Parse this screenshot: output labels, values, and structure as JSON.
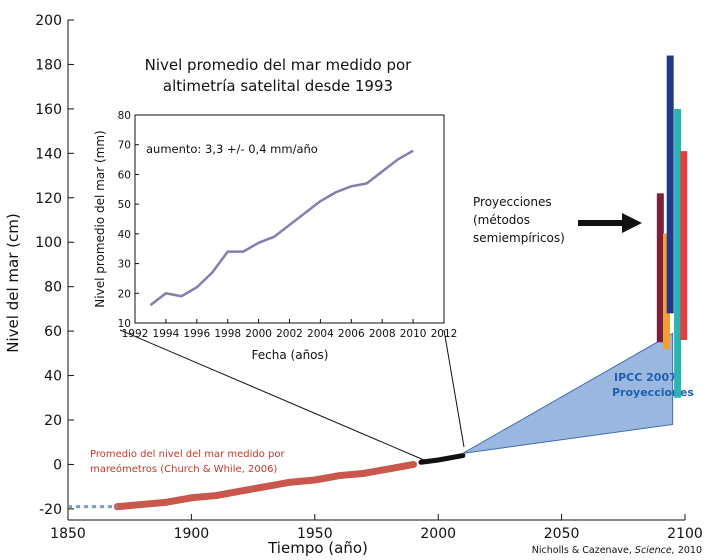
{
  "chart_data": [
    {
      "type": "line",
      "xlabel": "Tiempo (año)",
      "ylabel": "Nivel del mar (cm)",
      "xlim": [
        1850,
        2100
      ],
      "ylim": [
        -25,
        200
      ],
      "x_ticks": [
        1850,
        1900,
        1950,
        2000,
        2050,
        2100
      ],
      "y_ticks": [
        -20,
        0,
        20,
        40,
        60,
        80,
        100,
        120,
        140,
        160,
        180,
        200
      ],
      "series": [
        {
          "name": "Promedio del nivel del mar medido por mareómetros (Church & White, 2006)",
          "color": "#c0392b",
          "x": [
            1870,
            1880,
            1890,
            1900,
            1910,
            1920,
            1930,
            1940,
            1950,
            1960,
            1970,
            1980,
            1990
          ],
          "y": [
            -19,
            -18,
            -17,
            -15,
            -14,
            -12,
            -10,
            -8,
            -7,
            -5,
            -4,
            -2,
            0
          ]
        },
        {
          "color": "#7f9cc4",
          "style": "dotted",
          "x": [
            1850,
            1870
          ],
          "y": [
            -19,
            -19
          ]
        },
        {
          "color": "#111111",
          "x": [
            1993,
            2000,
            2010
          ],
          "y": [
            1,
            2,
            4
          ]
        }
      ],
      "ipcc_projection": {
        "label_line1": "IPCC 2007",
        "label_line2": "Proyecciones",
        "start": [
          2010,
          5
        ],
        "end_low": [
          2095,
          18
        ],
        "end_high": [
          2095,
          59
        ],
        "color": "#8fb0dc"
      },
      "projection_bars": [
        {
          "x": 2090,
          "low": 55,
          "high": 122,
          "color": "#7a1f3d"
        },
        {
          "x": 2092.5,
          "low": 52,
          "high": 104,
          "color": "#f0a030"
        },
        {
          "x": 2094,
          "low": 68,
          "high": 184,
          "color": "#1f3a8a"
        },
        {
          "x": 2097,
          "low": 30,
          "high": 160,
          "color": "#2bb5b0"
        },
        {
          "x": 2099.5,
          "low": 56,
          "high": 141,
          "color": "#e04040"
        }
      ],
      "projection_note": {
        "line1": "Proyecciones",
        "line2": "(métodos",
        "line3": "semiempíricos)"
      },
      "tide_label": {
        "line1": "Promedio del nivel del mar medido por",
        "line2": "mareómetros (Church & While, 2006)"
      },
      "credit_text": "Nicholls & Cazenave,",
      "credit_journal": "Science,",
      "credit_year": "2010"
    },
    {
      "type": "line",
      "title_line1": "Nivel promedio del mar medido por",
      "title_line2": "altimetría satelital desde 1993",
      "xlabel": "Fecha (años)",
      "ylabel": "Nivel promedio del mar (mm)",
      "annotation": "aumento: 3,3 +/- 0,4 mm/año",
      "xlim": [
        1992,
        2012
      ],
      "ylim": [
        10,
        80
      ],
      "x_ticks": [
        1992,
        1994,
        1996,
        1998,
        2000,
        2002,
        2004,
        2006,
        2008,
        2010,
        2012
      ],
      "y_ticks": [
        10,
        20,
        30,
        40,
        50,
        60,
        70,
        80
      ],
      "series": [
        {
          "color": "#6c5a9c",
          "x": [
            1993,
            1994,
            1995,
            1996,
            1997,
            1998,
            1999,
            2000,
            2001,
            2002,
            2003,
            2004,
            2005,
            2006,
            2007,
            2008,
            2009,
            2010
          ],
          "y": [
            16,
            20,
            19,
            22,
            27,
            34,
            34,
            37,
            39,
            43,
            47,
            51,
            54,
            56,
            57,
            61,
            65,
            68
          ]
        }
      ]
    }
  ]
}
